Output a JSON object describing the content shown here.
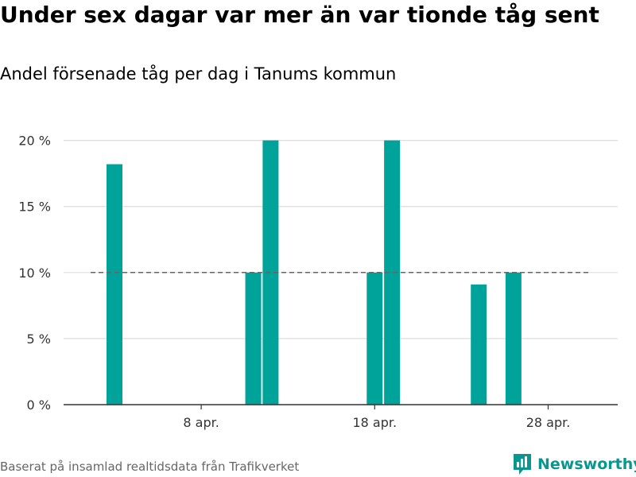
{
  "title": "Under sex dagar var mer än var tionde tåg sent",
  "subtitle": "Andel försenade tåg per dag i Tanums kommun",
  "footer": "Baserat på insamlad realtidsdata från Trafikverket",
  "brand": "Newsworthy",
  "colors": {
    "bar": "#00a39a",
    "brand": "#07978f",
    "grid": "#dddddd",
    "axis": "#333333",
    "reference": "#666666"
  },
  "chart_data": {
    "type": "bar",
    "x_unit": "day of April",
    "x_range": [
      1,
      31
    ],
    "y_range": [
      0,
      21
    ],
    "reference_line": 10,
    "y_ticks": [
      {
        "value": 0,
        "label": "0 %"
      },
      {
        "value": 5,
        "label": "5 %"
      },
      {
        "value": 10,
        "label": "10 %"
      },
      {
        "value": 15,
        "label": "15 %"
      },
      {
        "value": 20,
        "label": "20 %"
      }
    ],
    "x_ticks": [
      {
        "day": 8,
        "label": "8 apr."
      },
      {
        "day": 18,
        "label": "18 apr."
      },
      {
        "day": 28,
        "label": "28 apr."
      }
    ],
    "points": [
      {
        "day": 3,
        "value": 18.2
      },
      {
        "day": 11,
        "value": 10.0
      },
      {
        "day": 12,
        "value": 20.0
      },
      {
        "day": 18,
        "value": 10.0
      },
      {
        "day": 19,
        "value": 20.0
      },
      {
        "day": 24,
        "value": 9.1
      },
      {
        "day": 26,
        "value": 10.0
      }
    ],
    "grid": true,
    "legend": "none"
  }
}
